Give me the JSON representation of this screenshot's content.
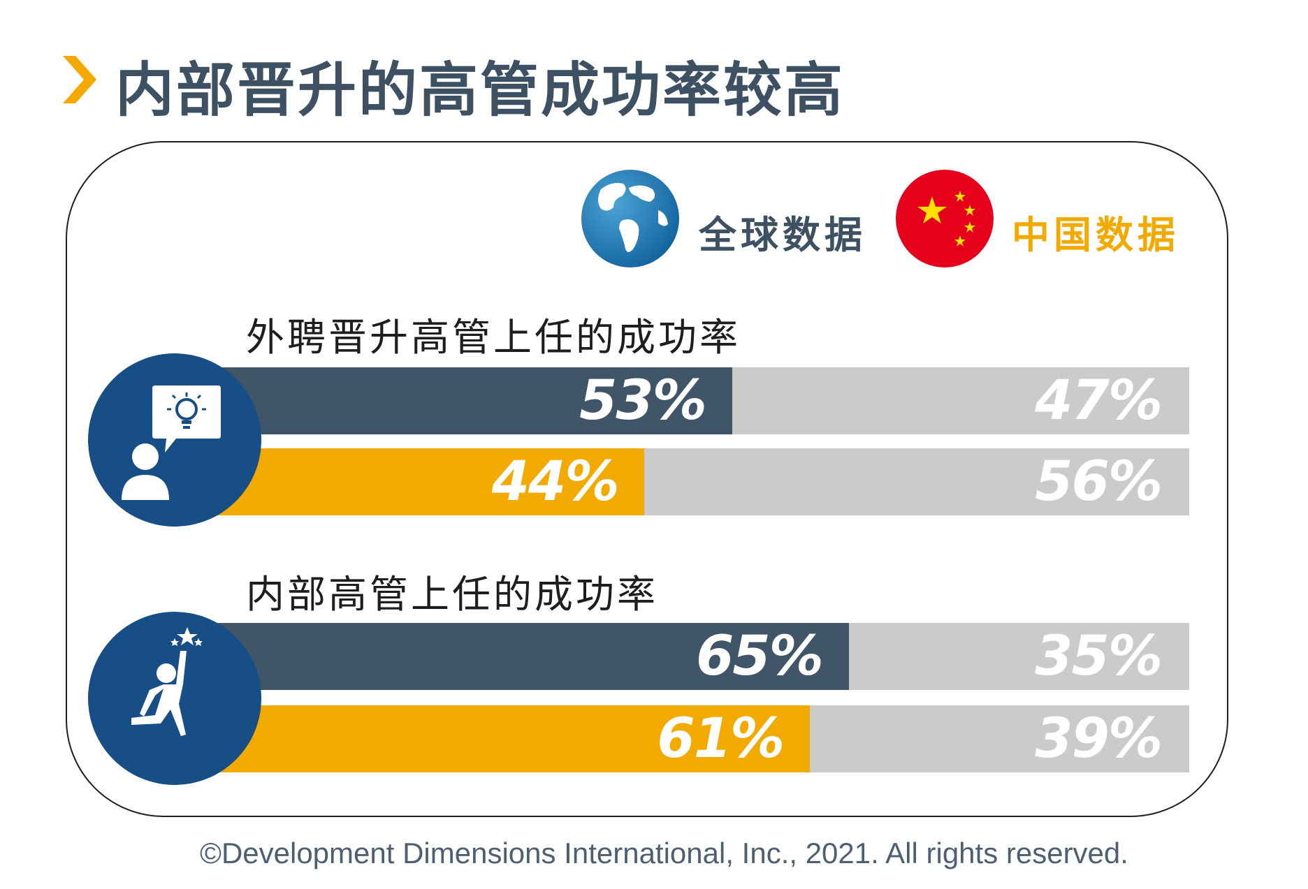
{
  "title": "内部晋升的高管成功率较高",
  "legend": [
    {
      "label": "全球数据",
      "color": "#3d5162",
      "icon": "globe-icon"
    },
    {
      "label": "中国数据",
      "color": "#f2a900",
      "icon": "china-flag-icon"
    }
  ],
  "colors": {
    "global": "#415568",
    "china": "#f2a900",
    "rest": "#cbcbca",
    "circle": "#174e86",
    "accent": "#f5a800"
  },
  "chart_data": [
    {
      "type": "bar",
      "title": "外聘晋升高管上任的成功率",
      "series": [
        {
          "name": "全球数据",
          "values": [
            53,
            47
          ],
          "labels": [
            "53%",
            "47%"
          ]
        },
        {
          "name": "中国数据",
          "values": [
            44,
            56
          ],
          "labels": [
            "44%",
            "56%"
          ]
        }
      ],
      "icon": "lightbulb-speech-person-icon"
    },
    {
      "type": "bar",
      "title": "内部高管上任的成功率",
      "series": [
        {
          "name": "全球数据",
          "values": [
            65,
            35
          ],
          "labels": [
            "65%",
            "35%"
          ]
        },
        {
          "name": "中国数据",
          "values": [
            61,
            39
          ],
          "labels": [
            "61%",
            "39%"
          ]
        }
      ],
      "icon": "reaching-star-person-icon"
    }
  ],
  "copyright": "©Development Dimensions International, Inc., 2021. All rights reserved."
}
